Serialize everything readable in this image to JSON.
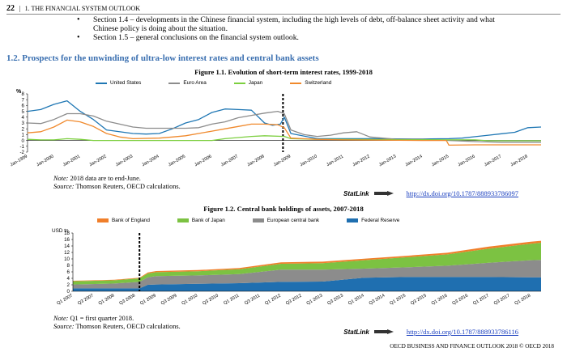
{
  "header": {
    "page_number": "22",
    "running_title": "1. THE FINANCIAL SYSTEM OUTLOOK"
  },
  "bullets": [
    "Section 1.4 – developments in the Chinese financial system, including the high levels of debt, off-balance sheet activity and what Chinese policy is doing about the situation.",
    "Section 1.5 – general conclusions on the financial system outlook."
  ],
  "section_heading": "1.2. Prospects for the unwinding of ultra-low interest rates and central bank assets",
  "figure1": {
    "title": "Figure 1.1. Evolution of short-term interest rates, 1999-2018",
    "note": "2018 data are to end-June.",
    "note_label": "Note:",
    "source": "Thomson Reuters, OECD calculations.",
    "source_label": "Source:",
    "statlink_brand": "StatLink",
    "statlink_url": "http://dx.doi.org/10.1787/888933786097"
  },
  "figure2": {
    "title": "Figure 1.2. Central bank holdings of assets, 2007-2018",
    "note": "Q1 = first quarter 2018.",
    "note_label": "Note:",
    "source": "Thomson Reuters, OECD calculations.",
    "source_label": "Source:",
    "statlink_brand": "StatLink",
    "statlink_url": "http://dx.doi.org/10.1787/888933786116"
  },
  "footer": "OECD BUSINESS AND FINANCE OUTLOOK 2018 © OECD 2018",
  "chart_data": [
    {
      "type": "line",
      "title": "Figure 1.1. Evolution of short-term interest rates, 1999-2018",
      "ylabel": "%",
      "ylim": [
        -2,
        8
      ],
      "yticks": [
        -2,
        -1,
        0,
        1,
        2,
        3,
        4,
        5,
        6,
        7,
        8
      ],
      "xlim": [
        1999.0,
        2018.5
      ],
      "xticks": [
        "Jan-1999",
        "Jan-2000",
        "Jan-2001",
        "Jan-2002",
        "Jan-2003",
        "Jan-2004",
        "Jan-2005",
        "Jan-2006",
        "Jan-2007",
        "Jan-2008",
        "Jan-2009",
        "Jan-2010",
        "Jan-2011",
        "Jan-2012",
        "Jan-2013",
        "Jan-2014",
        "Jan-2015",
        "Jan-2016",
        "Jan-2017",
        "Jan-2018"
      ],
      "vline_x": 2008.7,
      "grid": false,
      "legend_position": "top",
      "series": [
        {
          "name": "United States",
          "color": "#1f77b4",
          "x": [
            1999,
            1999.5,
            2000,
            2000.5,
            2001,
            2001.5,
            2002,
            2003,
            2003.5,
            2004,
            2004.5,
            2005,
            2005.5,
            2006,
            2006.5,
            2007,
            2007.5,
            2008,
            2008.3,
            2008.6,
            2008.75,
            2009,
            2010,
            2012,
            2014,
            2015,
            2015.5,
            2016,
            2016.5,
            2017,
            2017.5,
            2018,
            2018.5
          ],
          "y": [
            5.0,
            5.3,
            6.2,
            6.8,
            5.0,
            3.6,
            1.8,
            1.2,
            1.1,
            1.2,
            2.0,
            3.0,
            3.6,
            4.8,
            5.4,
            5.3,
            5.2,
            3.0,
            2.6,
            2.8,
            4.0,
            1.2,
            0.3,
            0.3,
            0.25,
            0.3,
            0.4,
            0.65,
            0.9,
            1.15,
            1.4,
            2.2,
            2.3
          ]
        },
        {
          "name": "Euro Area",
          "color": "#8c8c8c",
          "x": [
            1999,
            1999.5,
            2000,
            2000.5,
            2001,
            2001.5,
            2002,
            2003,
            2003.5,
            2004,
            2005,
            2005.5,
            2006,
            2006.5,
            2007,
            2007.5,
            2008,
            2008.5,
            2008.75,
            2009,
            2009.5,
            2010,
            2010.5,
            2011,
            2011.5,
            2012,
            2013,
            2014,
            2014.5,
            2015,
            2016,
            2017,
            2018.5
          ],
          "y": [
            3.0,
            2.9,
            3.6,
            4.6,
            4.6,
            4.2,
            3.3,
            2.3,
            2.1,
            2.1,
            2.1,
            2.2,
            2.8,
            3.2,
            3.9,
            4.3,
            4.7,
            5.0,
            4.6,
            1.8,
            1.0,
            0.7,
            0.9,
            1.3,
            1.5,
            0.6,
            0.2,
            0.2,
            0.1,
            0.0,
            -0.2,
            -0.3,
            -0.3
          ]
        },
        {
          "name": "Japan",
          "color": "#7ccf3f",
          "x": [
            1999,
            1999.5,
            2000,
            2000.5,
            2001,
            2001.5,
            2002,
            2006,
            2006.5,
            2007,
            2007.5,
            2008,
            2008.75,
            2009,
            2010,
            2016,
            2016.5,
            2018.5
          ],
          "y": [
            0.2,
            0.1,
            0.1,
            0.3,
            0.2,
            0.0,
            0.0,
            0.0,
            0.3,
            0.5,
            0.7,
            0.8,
            0.7,
            0.3,
            0.2,
            0.1,
            -0.05,
            -0.05
          ]
        },
        {
          "name": "Switzerland",
          "color": "#f0892c",
          "x": [
            1999,
            1999.5,
            2000,
            2000.5,
            2001,
            2001.5,
            2002,
            2002.5,
            2003,
            2004,
            2004.5,
            2005,
            2006,
            2006.5,
            2007,
            2007.5,
            2008,
            2008.5,
            2008.75,
            2009,
            2010,
            2011,
            2014,
            2014.9,
            2015,
            2016,
            2018.5
          ],
          "y": [
            1.3,
            1.5,
            2.3,
            3.5,
            3.2,
            2.4,
            1.2,
            0.6,
            0.3,
            0.4,
            0.6,
            0.8,
            1.6,
            2.0,
            2.4,
            2.8,
            2.8,
            2.7,
            2.2,
            0.4,
            0.2,
            0.1,
            0.0,
            0.0,
            -0.8,
            -0.75,
            -0.75
          ]
        }
      ]
    },
    {
      "type": "area",
      "stacked": true,
      "title": "Figure 1.2. Central bank holdings of assets, 2007-2018",
      "ylabel": "USD tn",
      "ylim": [
        0,
        18
      ],
      "yticks": [
        0,
        2,
        4,
        6,
        8,
        10,
        12,
        14,
        16,
        18
      ],
      "xlim": [
        2007.0,
        2018.25
      ],
      "xticks": [
        "Q1 2007",
        "Q3 2007",
        "Q1 2008",
        "Q3 2008",
        "Q1 2009",
        "Q3 2009",
        "Q1 2010",
        "Q3 2010",
        "Q1 2011",
        "Q3 2011",
        "Q1 2012",
        "Q3 2012",
        "Q1 2013",
        "Q3 2013",
        "Q1 2014",
        "Q3 2014",
        "Q1 2015",
        "Q3 2015",
        "Q1 2016",
        "Q3 2016",
        "Q1 2017",
        "Q3 2017",
        "Q1 2018"
      ],
      "vline_x": 2008.6,
      "grid": false,
      "legend_position": "top",
      "x": [
        2007.0,
        2008.0,
        2008.6,
        2008.8,
        2009.0,
        2010.0,
        2011.0,
        2012.0,
        2013.0,
        2014.0,
        2015.0,
        2016.0,
        2017.0,
        2018.0,
        2018.25
      ],
      "series": [
        {
          "name": "Federal Reserve",
          "color": "#1f6fb0",
          "values": [
            0.9,
            0.9,
            0.9,
            2.0,
            2.1,
            2.3,
            2.5,
            2.9,
            3.0,
            4.2,
            4.4,
            4.4,
            4.4,
            4.3,
            4.3
          ]
        },
        {
          "name": "European central bank",
          "color": "#8c8c8c",
          "values": [
            1.2,
            1.5,
            2.0,
            2.3,
            2.6,
            2.6,
            2.8,
            3.8,
            3.7,
            2.8,
            3.0,
            3.5,
            4.4,
            5.3,
            5.4
          ]
        },
        {
          "name": "Bank of Japan",
          "color": "#7cc242",
          "values": [
            1.0,
            1.0,
            1.1,
            1.2,
            1.2,
            1.3,
            1.5,
            1.8,
            2.0,
            2.6,
            3.1,
            3.5,
            4.4,
            5.1,
            5.3
          ]
        },
        {
          "name": "Bank of England",
          "color": "#f07f2a",
          "values": [
            0.15,
            0.15,
            0.2,
            0.3,
            0.35,
            0.35,
            0.38,
            0.45,
            0.45,
            0.45,
            0.45,
            0.5,
            0.6,
            0.6,
            0.6
          ]
        }
      ]
    }
  ]
}
